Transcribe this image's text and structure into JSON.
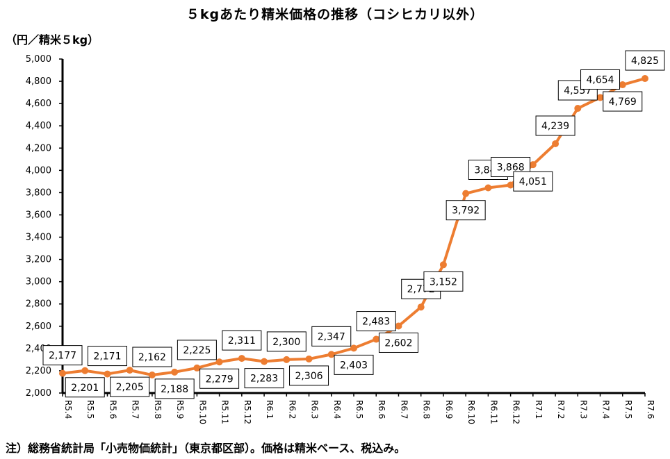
{
  "chart_data": {
    "type": "line",
    "title": "５kgあたり精米価格の推移（コシヒカリ以外）",
    "ylabel": "（円／精米５kg）",
    "note": "注）総務省統計局「小売物価統計」（東京都区部）。価格は精米ベース、税込み。",
    "ylim": [
      2000,
      5000
    ],
    "y_ticks": [
      "2,000",
      "2,200",
      "2,400",
      "2,600",
      "2,800",
      "3,000",
      "3,200",
      "3,400",
      "3,600",
      "3,800",
      "4,000",
      "4,200",
      "4,400",
      "4,600",
      "4,800",
      "5,000"
    ],
    "categories": [
      "R5.4",
      "R5.5",
      "R5.6",
      "R5.7",
      "R5.8",
      "R5.9",
      "R5.10",
      "R5.11",
      "R5.12",
      "R6.1",
      "R6.2",
      "R6.3",
      "R6.4",
      "R6.5",
      "R6.6",
      "R6.7",
      "R6.8",
      "R6.9",
      "R6.10",
      "R6.11",
      "R6.12",
      "R7.1",
      "R7.2",
      "R7.3",
      "R7.4",
      "R7.5",
      "R7.6"
    ],
    "values": [
      2177,
      2201,
      2171,
      2205,
      2162,
      2188,
      2225,
      2279,
      2311,
      2283,
      2300,
      2306,
      2347,
      2403,
      2483,
      2602,
      2772,
      3152,
      3792,
      3843,
      3868,
      4051,
      4239,
      4557,
      4654,
      4769,
      4825
    ],
    "data_labels": [
      "2,177",
      "2,201",
      "2,171",
      "2,205",
      "2,162",
      "2,188",
      "2,225",
      "2,279",
      "2,311",
      "2,283",
      "2,300",
      "2,306",
      "2,347",
      "2,403",
      "2,483",
      "2,602",
      "2,772",
      "3,152",
      "3,792",
      "3,843",
      "3,868",
      "4,051",
      "4,239",
      "4,557",
      "4,654",
      "4,769",
      "4,825"
    ],
    "label_position": [
      "above",
      "below",
      "above",
      "below",
      "above",
      "below",
      "above",
      "below",
      "above",
      "below",
      "above",
      "below",
      "above",
      "below",
      "above",
      "below",
      "above",
      "below",
      "below",
      "above",
      "above",
      "below",
      "above",
      "above",
      "above",
      "below",
      "above"
    ],
    "line_color": "#ED7D31",
    "grid": false
  }
}
